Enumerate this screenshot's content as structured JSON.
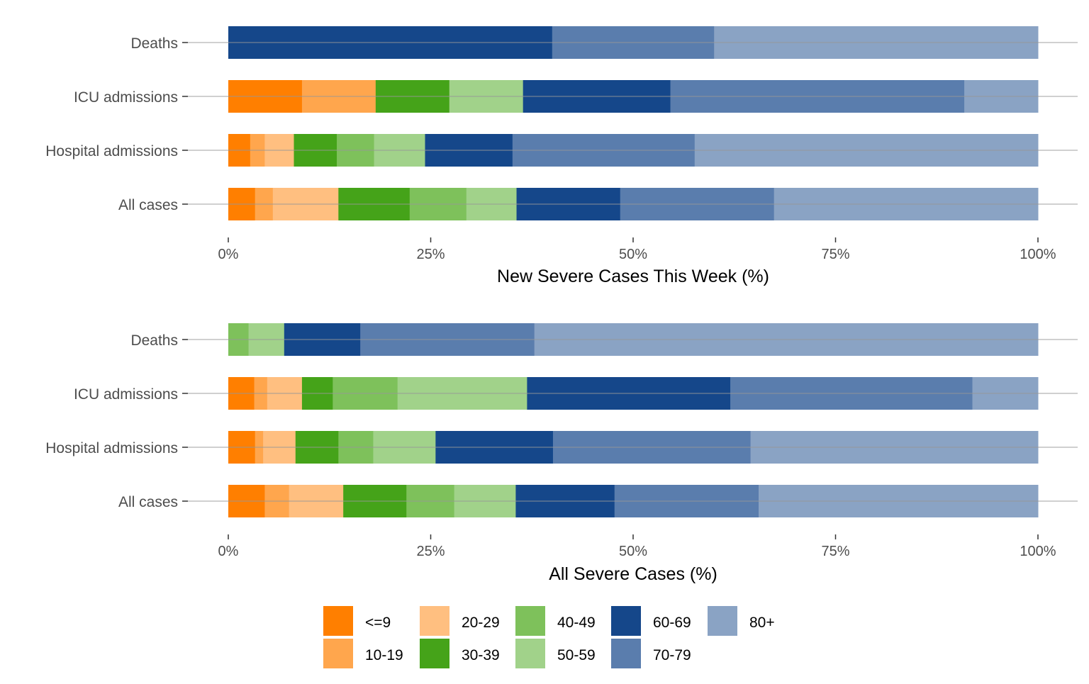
{
  "chart_data": [
    {
      "type": "bar",
      "orientation": "horizontal",
      "stacked": true,
      "xlabel": "New Severe Cases This Week (%)",
      "xlim": [
        0,
        100
      ],
      "xticks": [
        "0%",
        "25%",
        "50%",
        "75%",
        "100%"
      ],
      "categories": [
        "Deaths",
        "ICU admissions",
        "Hospital admissions",
        "All cases"
      ],
      "series": [
        {
          "name": "<=9",
          "values": [
            0,
            9.1,
            2.7,
            3.3
          ]
        },
        {
          "name": "10-19",
          "values": [
            0,
            9.1,
            1.8,
            2.2
          ]
        },
        {
          "name": "20-29",
          "values": [
            0,
            0,
            3.6,
            8.1
          ]
        },
        {
          "name": "30-39",
          "values": [
            0,
            9.1,
            5.3,
            8.8
          ]
        },
        {
          "name": "40-49",
          "values": [
            0,
            0,
            4.6,
            7.0
          ]
        },
        {
          "name": "50-59",
          "values": [
            0,
            9.1,
            6.3,
            6.2
          ]
        },
        {
          "name": "60-69",
          "values": [
            40.0,
            18.2,
            10.8,
            12.8
          ]
        },
        {
          "name": "70-79",
          "values": [
            20.0,
            36.3,
            22.5,
            19.0
          ]
        },
        {
          "name": "80+",
          "values": [
            40.0,
            9.1,
            42.4,
            32.6
          ]
        }
      ]
    },
    {
      "type": "bar",
      "orientation": "horizontal",
      "stacked": true,
      "xlabel": "All Severe Cases (%)",
      "xlim": [
        0,
        100
      ],
      "xticks": [
        "0%",
        "25%",
        "50%",
        "75%",
        "100%"
      ],
      "categories": [
        "Deaths",
        "ICU admissions",
        "Hospital admissions",
        "All cases"
      ],
      "series": [
        {
          "name": "<=9",
          "values": [
            0,
            3.2,
            3.3,
            4.5
          ]
        },
        {
          "name": "10-19",
          "values": [
            0,
            1.6,
            1.0,
            3.0
          ]
        },
        {
          "name": "20-29",
          "values": [
            0,
            4.3,
            4.0,
            6.7
          ]
        },
        {
          "name": "30-39",
          "values": [
            0,
            3.8,
            5.3,
            7.8
          ]
        },
        {
          "name": "40-49",
          "values": [
            2.5,
            8.0,
            4.3,
            5.9
          ]
        },
        {
          "name": "50-59",
          "values": [
            4.4,
            16.0,
            7.7,
            7.6
          ]
        },
        {
          "name": "60-69",
          "values": [
            9.4,
            25.1,
            14.5,
            12.2
          ]
        },
        {
          "name": "70-79",
          "values": [
            21.5,
            29.9,
            24.4,
            17.8
          ]
        },
        {
          "name": "80+",
          "values": [
            62.2,
            8.1,
            35.5,
            34.5
          ]
        }
      ]
    }
  ],
  "legend": {
    "position": "bottom",
    "items": [
      {
        "label": "<=9",
        "color": "#FF7F00"
      },
      {
        "label": "10-19",
        "color": "#FFA64D"
      },
      {
        "label": "20-29",
        "color": "#FFBF80"
      },
      {
        "label": "30-39",
        "color": "#45A319"
      },
      {
        "label": "40-49",
        "color": "#7EC15B"
      },
      {
        "label": "50-59",
        "color": "#A1D28A"
      },
      {
        "label": "60-69",
        "color": "#15478A"
      },
      {
        "label": "70-79",
        "color": "#5A7DAD"
      },
      {
        "label": "80+",
        "color": "#8AA3C4"
      }
    ]
  }
}
